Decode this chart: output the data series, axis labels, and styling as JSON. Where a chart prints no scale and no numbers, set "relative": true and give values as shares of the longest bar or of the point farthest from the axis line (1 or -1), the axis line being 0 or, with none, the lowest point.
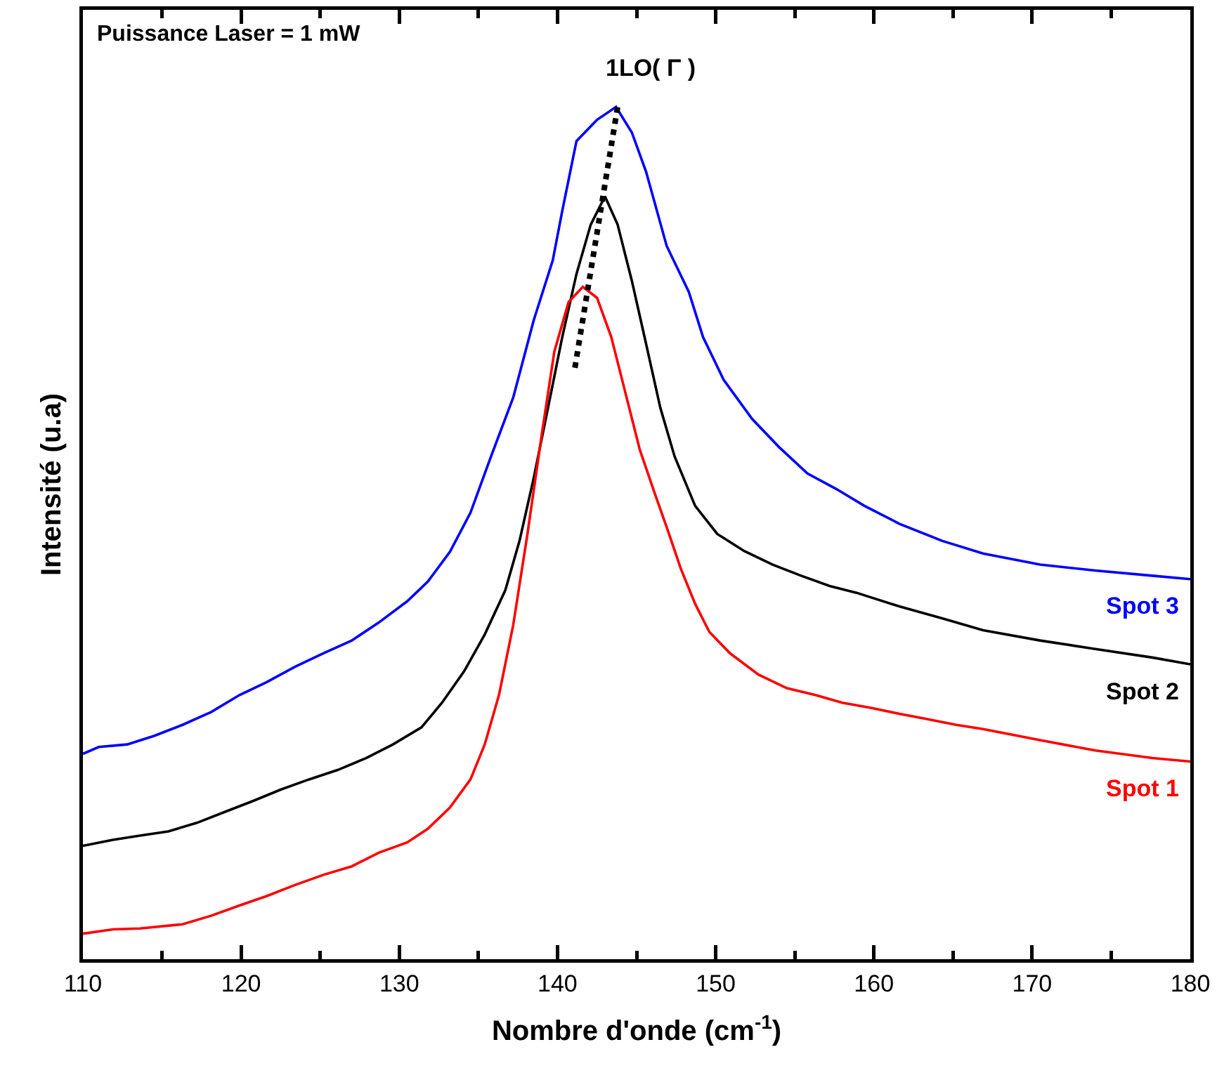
{
  "chart_data": {
    "type": "line",
    "relative": true,
    "xlabel": "Nombre d'onde (cm$^{-1}$)",
    "ylabel": "Intensité (u.a)",
    "xlim": [
      110,
      180
    ],
    "xticks": [
      110,
      120,
      130,
      140,
      150,
      160,
      170,
      180
    ],
    "grid": false,
    "legend": false,
    "line_style": "solid",
    "marker": "none",
    "annotations": [
      "Puissance Laser = 1 mW",
      {
        "text": "1LO( Γ )",
        "x": 143.8,
        "y": 1.0
      }
    ],
    "series": [
      {
        "name": "Spot 3",
        "color": "#0000ff",
        "x": [
          110.0,
          111.0,
          112.8,
          114.5,
          116.3,
          118.1,
          119.9,
          121.6,
          123.4,
          125.2,
          127.0,
          128.7,
          130.5,
          131.8,
          133.2,
          134.5,
          135.8,
          137.2,
          138.5,
          139.7,
          140.3,
          141.2,
          142.5,
          143.7,
          144.7,
          145.6,
          146.9,
          148.3,
          149.2,
          150.5,
          152.3,
          154.0,
          155.8,
          157.6,
          159.4,
          161.6,
          164.3,
          166.9,
          170.5,
          174.0,
          177.6,
          180.0
        ],
        "values": [
          0.241,
          0.249,
          0.252,
          0.262,
          0.275,
          0.29,
          0.31,
          0.325,
          0.343,
          0.359,
          0.374,
          0.395,
          0.42,
          0.443,
          0.478,
          0.524,
          0.59,
          0.659,
          0.75,
          0.82,
          0.878,
          0.96,
          0.985,
          1.0,
          0.97,
          0.924,
          0.837,
          0.783,
          0.73,
          0.68,
          0.634,
          0.601,
          0.57,
          0.552,
          0.532,
          0.511,
          0.491,
          0.476,
          0.463,
          0.456,
          0.45,
          0.446
        ]
      },
      {
        "name": "Spot 2",
        "color": "#000000",
        "x": [
          110.0,
          111.9,
          113.6,
          115.4,
          117.2,
          119.0,
          120.8,
          122.5,
          124.3,
          126.1,
          127.9,
          129.6,
          131.4,
          132.7,
          134.1,
          135.4,
          136.7,
          137.6,
          138.5,
          139.4,
          140.3,
          141.2,
          142.1,
          143.0,
          143.8,
          144.7,
          145.6,
          146.5,
          147.4,
          148.7,
          150.1,
          151.8,
          153.6,
          155.4,
          157.2,
          158.9,
          161.6,
          164.3,
          166.9,
          170.5,
          174.0,
          177.6,
          180.0
        ],
        "values": [
          0.133,
          0.14,
          0.145,
          0.15,
          0.16,
          0.173,
          0.186,
          0.199,
          0.211,
          0.222,
          0.236,
          0.252,
          0.272,
          0.301,
          0.338,
          0.381,
          0.433,
          0.491,
          0.565,
          0.647,
          0.73,
          0.804,
          0.862,
          0.895,
          0.862,
          0.796,
          0.722,
          0.647,
          0.59,
          0.532,
          0.499,
          0.479,
          0.463,
          0.45,
          0.438,
          0.43,
          0.414,
          0.4,
          0.386,
          0.374,
          0.364,
          0.354,
          0.346
        ]
      },
      {
        "name": "Spot 1",
        "color": "#ff0000",
        "x": [
          110.0,
          111.9,
          113.6,
          116.3,
          118.1,
          119.9,
          121.6,
          123.4,
          125.2,
          127.0,
          128.7,
          130.5,
          131.8,
          133.2,
          134.5,
          135.4,
          136.3,
          137.2,
          138.1,
          139.0,
          139.8,
          140.7,
          141.6,
          142.5,
          143.4,
          144.3,
          145.2,
          146.1,
          146.9,
          147.8,
          148.7,
          149.6,
          150.9,
          152.7,
          154.5,
          156.3,
          158.0,
          159.8,
          161.6,
          163.3,
          165.2,
          166.9,
          170.5,
          174.0,
          177.6,
          180.0
        ],
        "values": [
          0.03,
          0.035,
          0.036,
          0.041,
          0.051,
          0.063,
          0.074,
          0.087,
          0.099,
          0.109,
          0.125,
          0.137,
          0.153,
          0.178,
          0.211,
          0.252,
          0.31,
          0.392,
          0.499,
          0.615,
          0.713,
          0.771,
          0.789,
          0.776,
          0.73,
          0.664,
          0.598,
          0.549,
          0.507,
          0.458,
          0.417,
          0.384,
          0.359,
          0.334,
          0.318,
          0.31,
          0.301,
          0.295,
          0.288,
          0.282,
          0.275,
          0.27,
          0.257,
          0.245,
          0.236,
          0.232
        ]
      },
      {
        "color": "#000000",
        "line_style": "dotted",
        "x": [
          141.1,
          143.8
        ],
        "values": [
          0.694,
          1.0
        ]
      }
    ]
  }
}
